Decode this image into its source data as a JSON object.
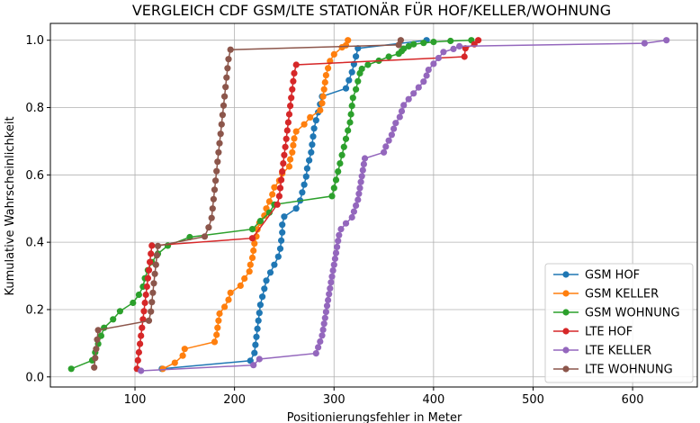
{
  "chart_data": {
    "type": "line",
    "title": "VERGLEICH CDF GSM/LTE STATIONÄR FÜR HOF/KELLER/WOHNUNG",
    "xlabel": "Positionierungsfehler in Meter",
    "ylabel": "Kumulative Wahrscheinlichkeit",
    "xlim": [
      15,
      665
    ],
    "ylim": [
      -0.03,
      1.05
    ],
    "xticks": [
      100,
      200,
      300,
      400,
      500,
      600
    ],
    "yticks": [
      0.0,
      0.2,
      0.4,
      0.6,
      0.8,
      1.0
    ],
    "xtick_labels": [
      "100",
      "200",
      "300",
      "400",
      "500",
      "600"
    ],
    "ytick_labels": [
      "0.0",
      "0.2",
      "0.4",
      "0.6",
      "0.8",
      "1.0"
    ],
    "grid": true,
    "legend_position": "lower-right",
    "series": [
      {
        "name": "GSM HOF",
        "color": "#1f77b4",
        "x": [
          127,
          216,
          220,
          221,
          222,
          223,
          224,
          225,
          226,
          228,
          230,
          232,
          236,
          240,
          244,
          246,
          247,
          248,
          248,
          250,
          262,
          266,
          268,
          270,
          272,
          273,
          275,
          277,
          278,
          279,
          280,
          282,
          284,
          286,
          288,
          312,
          315,
          318,
          320,
          322,
          324,
          393
        ],
        "y": [
          0.024,
          0.048,
          0.071,
          0.095,
          0.119,
          0.143,
          0.167,
          0.19,
          0.214,
          0.238,
          0.262,
          0.286,
          0.31,
          0.333,
          0.357,
          0.381,
          0.405,
          0.429,
          0.452,
          0.476,
          0.5,
          0.524,
          0.548,
          0.571,
          0.595,
          0.619,
          0.643,
          0.667,
          0.69,
          0.714,
          0.738,
          0.762,
          0.786,
          0.81,
          0.833,
          0.857,
          0.881,
          0.905,
          0.929,
          0.952,
          0.976,
          1.0
        ]
      },
      {
        "name": "GSM KELLER",
        "color": "#ff7f0e",
        "x": [
          128,
          140,
          148,
          150,
          180,
          182,
          183,
          184,
          185,
          190,
          194,
          196,
          206,
          210,
          215,
          216,
          218,
          219,
          220,
          222,
          223,
          225,
          230,
          232,
          235,
          238,
          240,
          245,
          248,
          255,
          256,
          258,
          259,
          260,
          262,
          270,
          276,
          286,
          288,
          289,
          290,
          291,
          292,
          294,
          296,
          300,
          308,
          312,
          314
        ],
        "y": [
          0.024,
          0.042,
          0.063,
          0.083,
          0.104,
          0.125,
          0.146,
          0.167,
          0.188,
          0.208,
          0.229,
          0.25,
          0.271,
          0.292,
          0.313,
          0.333,
          0.354,
          0.375,
          0.396,
          0.417,
          0.438,
          0.458,
          0.479,
          0.5,
          0.521,
          0.542,
          0.563,
          0.583,
          0.604,
          0.625,
          0.646,
          0.667,
          0.688,
          0.708,
          0.729,
          0.75,
          0.771,
          0.792,
          0.813,
          0.833,
          0.854,
          0.875,
          0.896,
          0.917,
          0.938,
          0.958,
          0.979,
          0.985,
          1.0
        ]
      },
      {
        "name": "GSM WOHNUNG",
        "color": "#2ca02c",
        "x": [
          36,
          57,
          60,
          63,
          66,
          69,
          78,
          85,
          98,
          104,
          108,
          110,
          113,
          117,
          123,
          133,
          155,
          218,
          226,
          235,
          240,
          298,
          300,
          302,
          304,
          306,
          308,
          310,
          312,
          314,
          316,
          317,
          318,
          319,
          322,
          324,
          326,
          328,
          334,
          345,
          355,
          365,
          368,
          370,
          375,
          380,
          390,
          400,
          417,
          438
        ],
        "y": [
          0.024,
          0.049,
          0.073,
          0.098,
          0.122,
          0.146,
          0.171,
          0.195,
          0.22,
          0.244,
          0.268,
          0.293,
          0.317,
          0.341,
          0.366,
          0.39,
          0.415,
          0.439,
          0.463,
          0.488,
          0.512,
          0.537,
          0.561,
          0.585,
          0.61,
          0.634,
          0.659,
          0.683,
          0.707,
          0.732,
          0.756,
          0.78,
          0.805,
          0.829,
          0.854,
          0.878,
          0.902,
          0.915,
          0.927,
          0.939,
          0.951,
          0.96,
          0.968,
          0.975,
          0.982,
          0.988,
          0.992,
          0.995,
          0.998,
          1.0
        ]
      },
      {
        "name": "LTE HOF",
        "color": "#d62728",
        "x": [
          102,
          103,
          104,
          105,
          106,
          107,
          108,
          109,
          110,
          111,
          112,
          113,
          114,
          115,
          116,
          117,
          218,
          243,
          245,
          246,
          247,
          248,
          249,
          250,
          251,
          252,
          253,
          254,
          255,
          256,
          257,
          258,
          259,
          260,
          262,
          431,
          432,
          441,
          445
        ],
        "y": [
          0.024,
          0.049,
          0.073,
          0.098,
          0.122,
          0.146,
          0.171,
          0.195,
          0.22,
          0.244,
          0.268,
          0.293,
          0.317,
          0.341,
          0.366,
          0.39,
          0.412,
          0.512,
          0.537,
          0.561,
          0.585,
          0.61,
          0.634,
          0.659,
          0.683,
          0.707,
          0.732,
          0.756,
          0.78,
          0.805,
          0.829,
          0.854,
          0.878,
          0.902,
          0.927,
          0.951,
          0.976,
          0.988,
          1.0
        ]
      },
      {
        "name": "LTE KELLER",
        "color": "#9467bd",
        "x": [
          106,
          219,
          225,
          282,
          284,
          286,
          288,
          289,
          290,
          291,
          292,
          293,
          294,
          295,
          296,
          297,
          298,
          299,
          300,
          301,
          302,
          303,
          304,
          305,
          307,
          312,
          318,
          320,
          322,
          324,
          325,
          326,
          327,
          328,
          329,
          330,
          331,
          350,
          352,
          355,
          358,
          360,
          362,
          366,
          368,
          370,
          375,
          380,
          385,
          390,
          393,
          395,
          400,
          405,
          410,
          420,
          426,
          612,
          634
        ],
        "y": [
          0.018,
          0.035,
          0.053,
          0.07,
          0.088,
          0.105,
          0.123,
          0.14,
          0.158,
          0.175,
          0.193,
          0.211,
          0.228,
          0.246,
          0.263,
          0.281,
          0.298,
          0.316,
          0.333,
          0.351,
          0.368,
          0.386,
          0.404,
          0.421,
          0.439,
          0.456,
          0.474,
          0.491,
          0.509,
          0.526,
          0.544,
          0.561,
          0.579,
          0.596,
          0.614,
          0.632,
          0.649,
          0.667,
          0.684,
          0.702,
          0.719,
          0.737,
          0.754,
          0.772,
          0.789,
          0.807,
          0.825,
          0.842,
          0.86,
          0.877,
          0.895,
          0.912,
          0.93,
          0.947,
          0.965,
          0.974,
          0.982,
          0.991,
          1.0
        ]
      },
      {
        "name": "LTE WOHNUNG",
        "color": "#8c564b",
        "x": [
          59,
          60,
          61,
          62,
          63,
          114,
          116,
          117,
          118,
          119,
          120,
          121,
          122,
          123,
          170,
          174,
          177,
          178,
          179,
          180,
          181,
          182,
          183,
          184,
          185,
          186,
          187,
          188,
          189,
          190,
          191,
          192,
          193,
          194,
          196,
          365,
          367
        ],
        "y": [
          0.028,
          0.056,
          0.083,
          0.111,
          0.139,
          0.167,
          0.194,
          0.222,
          0.25,
          0.278,
          0.306,
          0.333,
          0.361,
          0.389,
          0.417,
          0.444,
          0.472,
          0.5,
          0.528,
          0.556,
          0.583,
          0.611,
          0.639,
          0.667,
          0.694,
          0.722,
          0.75,
          0.778,
          0.806,
          0.833,
          0.861,
          0.889,
          0.917,
          0.944,
          0.972,
          0.986,
          1.0
        ]
      }
    ]
  }
}
